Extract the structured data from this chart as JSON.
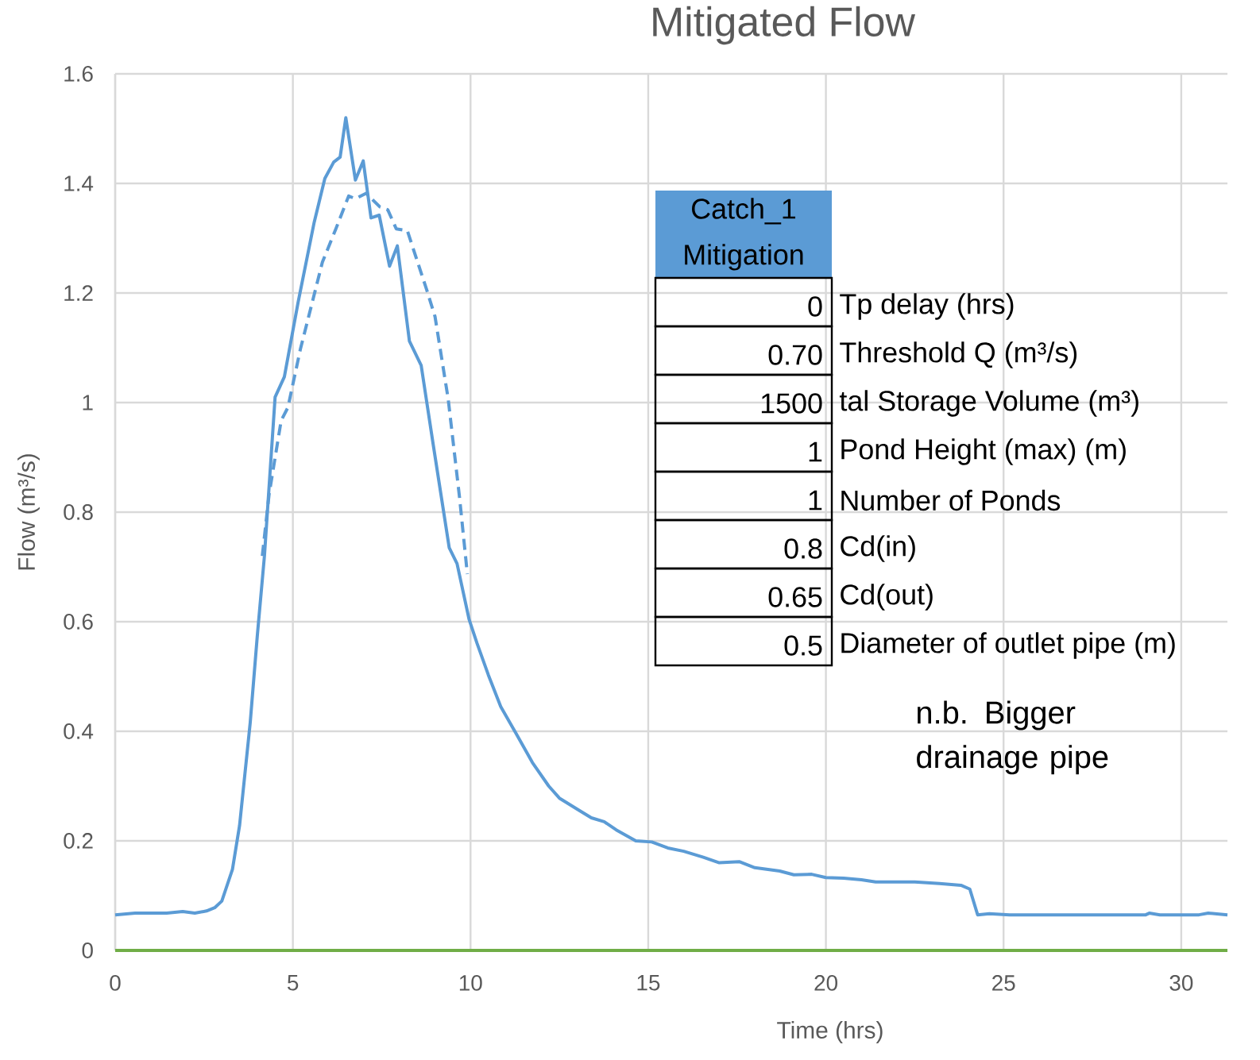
{
  "chart_data": {
    "type": "line",
    "title": "Mitigated Flow",
    "xlabel": "Time (hrs)",
    "ylabel": "Flow (m³/s)",
    "xlim": [
      0,
      31.3
    ],
    "xticks": [
      0,
      5,
      10,
      15,
      20,
      25,
      30
    ],
    "ylim": [
      0,
      1.6
    ],
    "yticks": [
      0,
      0.2,
      0.4,
      0.6,
      0.8,
      1,
      1.2,
      1.4,
      1.6
    ],
    "grid": true,
    "series": [
      {
        "color": "#5b9bd5",
        "line_style": "solid",
        "x": [
          0,
          0.56,
          1.45,
          1.9,
          2.24,
          2.57,
          2.8,
          3.0,
          3.3,
          3.5,
          3.8,
          4.0,
          4.2,
          4.5,
          4.76,
          5.15,
          5.6,
          5.9,
          6.15,
          6.33,
          6.49,
          6.76,
          6.98,
          7.2,
          7.43,
          7.72,
          7.94,
          8.28,
          8.61,
          8.95,
          9.4,
          9.62,
          9.96,
          10.18,
          10.5,
          10.85,
          11.3,
          11.74,
          12.2,
          12.5,
          12.97,
          13.4,
          13.76,
          14.1,
          14.65,
          15.1,
          15.55,
          16.0,
          16.55,
          17.0,
          17.56,
          18.0,
          18.7,
          19.1,
          19.6,
          20.0,
          20.5,
          21.0,
          21.4,
          22.5,
          23.2,
          23.8,
          24.05,
          24.27,
          24.6,
          25.17,
          29.0,
          29.1,
          29.4,
          30.5,
          30.76,
          31.3
        ],
        "values": [
          0.065,
          0.068,
          0.068,
          0.071,
          0.068,
          0.072,
          0.078,
          0.09,
          0.148,
          0.228,
          0.416,
          0.575,
          0.72,
          1.01,
          1.047,
          1.184,
          1.329,
          1.409,
          1.439,
          1.448,
          1.52,
          1.406,
          1.441,
          1.337,
          1.342,
          1.249,
          1.286,
          1.112,
          1.068,
          0.923,
          0.735,
          0.706,
          0.604,
          0.561,
          0.503,
          0.445,
          0.394,
          0.343,
          0.3,
          0.278,
          0.259,
          0.242,
          0.235,
          0.22,
          0.2,
          0.198,
          0.187,
          0.181,
          0.17,
          0.16,
          0.162,
          0.151,
          0.145,
          0.138,
          0.139,
          0.133,
          0.132,
          0.129,
          0.125,
          0.125,
          0.122,
          0.119,
          0.112,
          0.065,
          0.067,
          0.065,
          0.065,
          0.068,
          0.065,
          0.065,
          0.068,
          0.065
        ]
      },
      {
        "color": "#5b9bd5",
        "line_style": "dashed",
        "x": [
          4.14,
          4.33,
          4.67,
          4.86,
          5.21,
          5.83,
          6.21,
          6.57,
          6.76,
          7.06,
          7.45,
          7.67,
          7.91,
          8.22,
          8.76,
          9.0,
          9.37,
          9.69,
          9.91
        ],
        "values": [
          0.72,
          0.832,
          0.967,
          0.991,
          1.097,
          1.256,
          1.317,
          1.377,
          1.372,
          1.382,
          1.357,
          1.352,
          1.317,
          1.314,
          1.207,
          1.157,
          1.007,
          0.827,
          0.687
        ]
      },
      {
        "color": "#70ad47",
        "line_style": "solid",
        "x": [
          0,
          31.3
        ],
        "values": [
          0,
          0
        ]
      }
    ],
    "annotations": [
      "Catch_1 Mitigation",
      "0",
      "Tp delay (hrs)",
      "0.70",
      "Threshold Q (m³/s)",
      "1500",
      "tal Storage Volume (m³)",
      "1",
      "Pond Height (max) (m)",
      "1",
      "Number of Ponds",
      "0.8",
      "Cd(in)",
      "0.65",
      "Cd(out)",
      "0.5",
      "Diameter of outlet pipe (m)",
      "n.b. Bigger drainage pipe"
    ]
  }
}
